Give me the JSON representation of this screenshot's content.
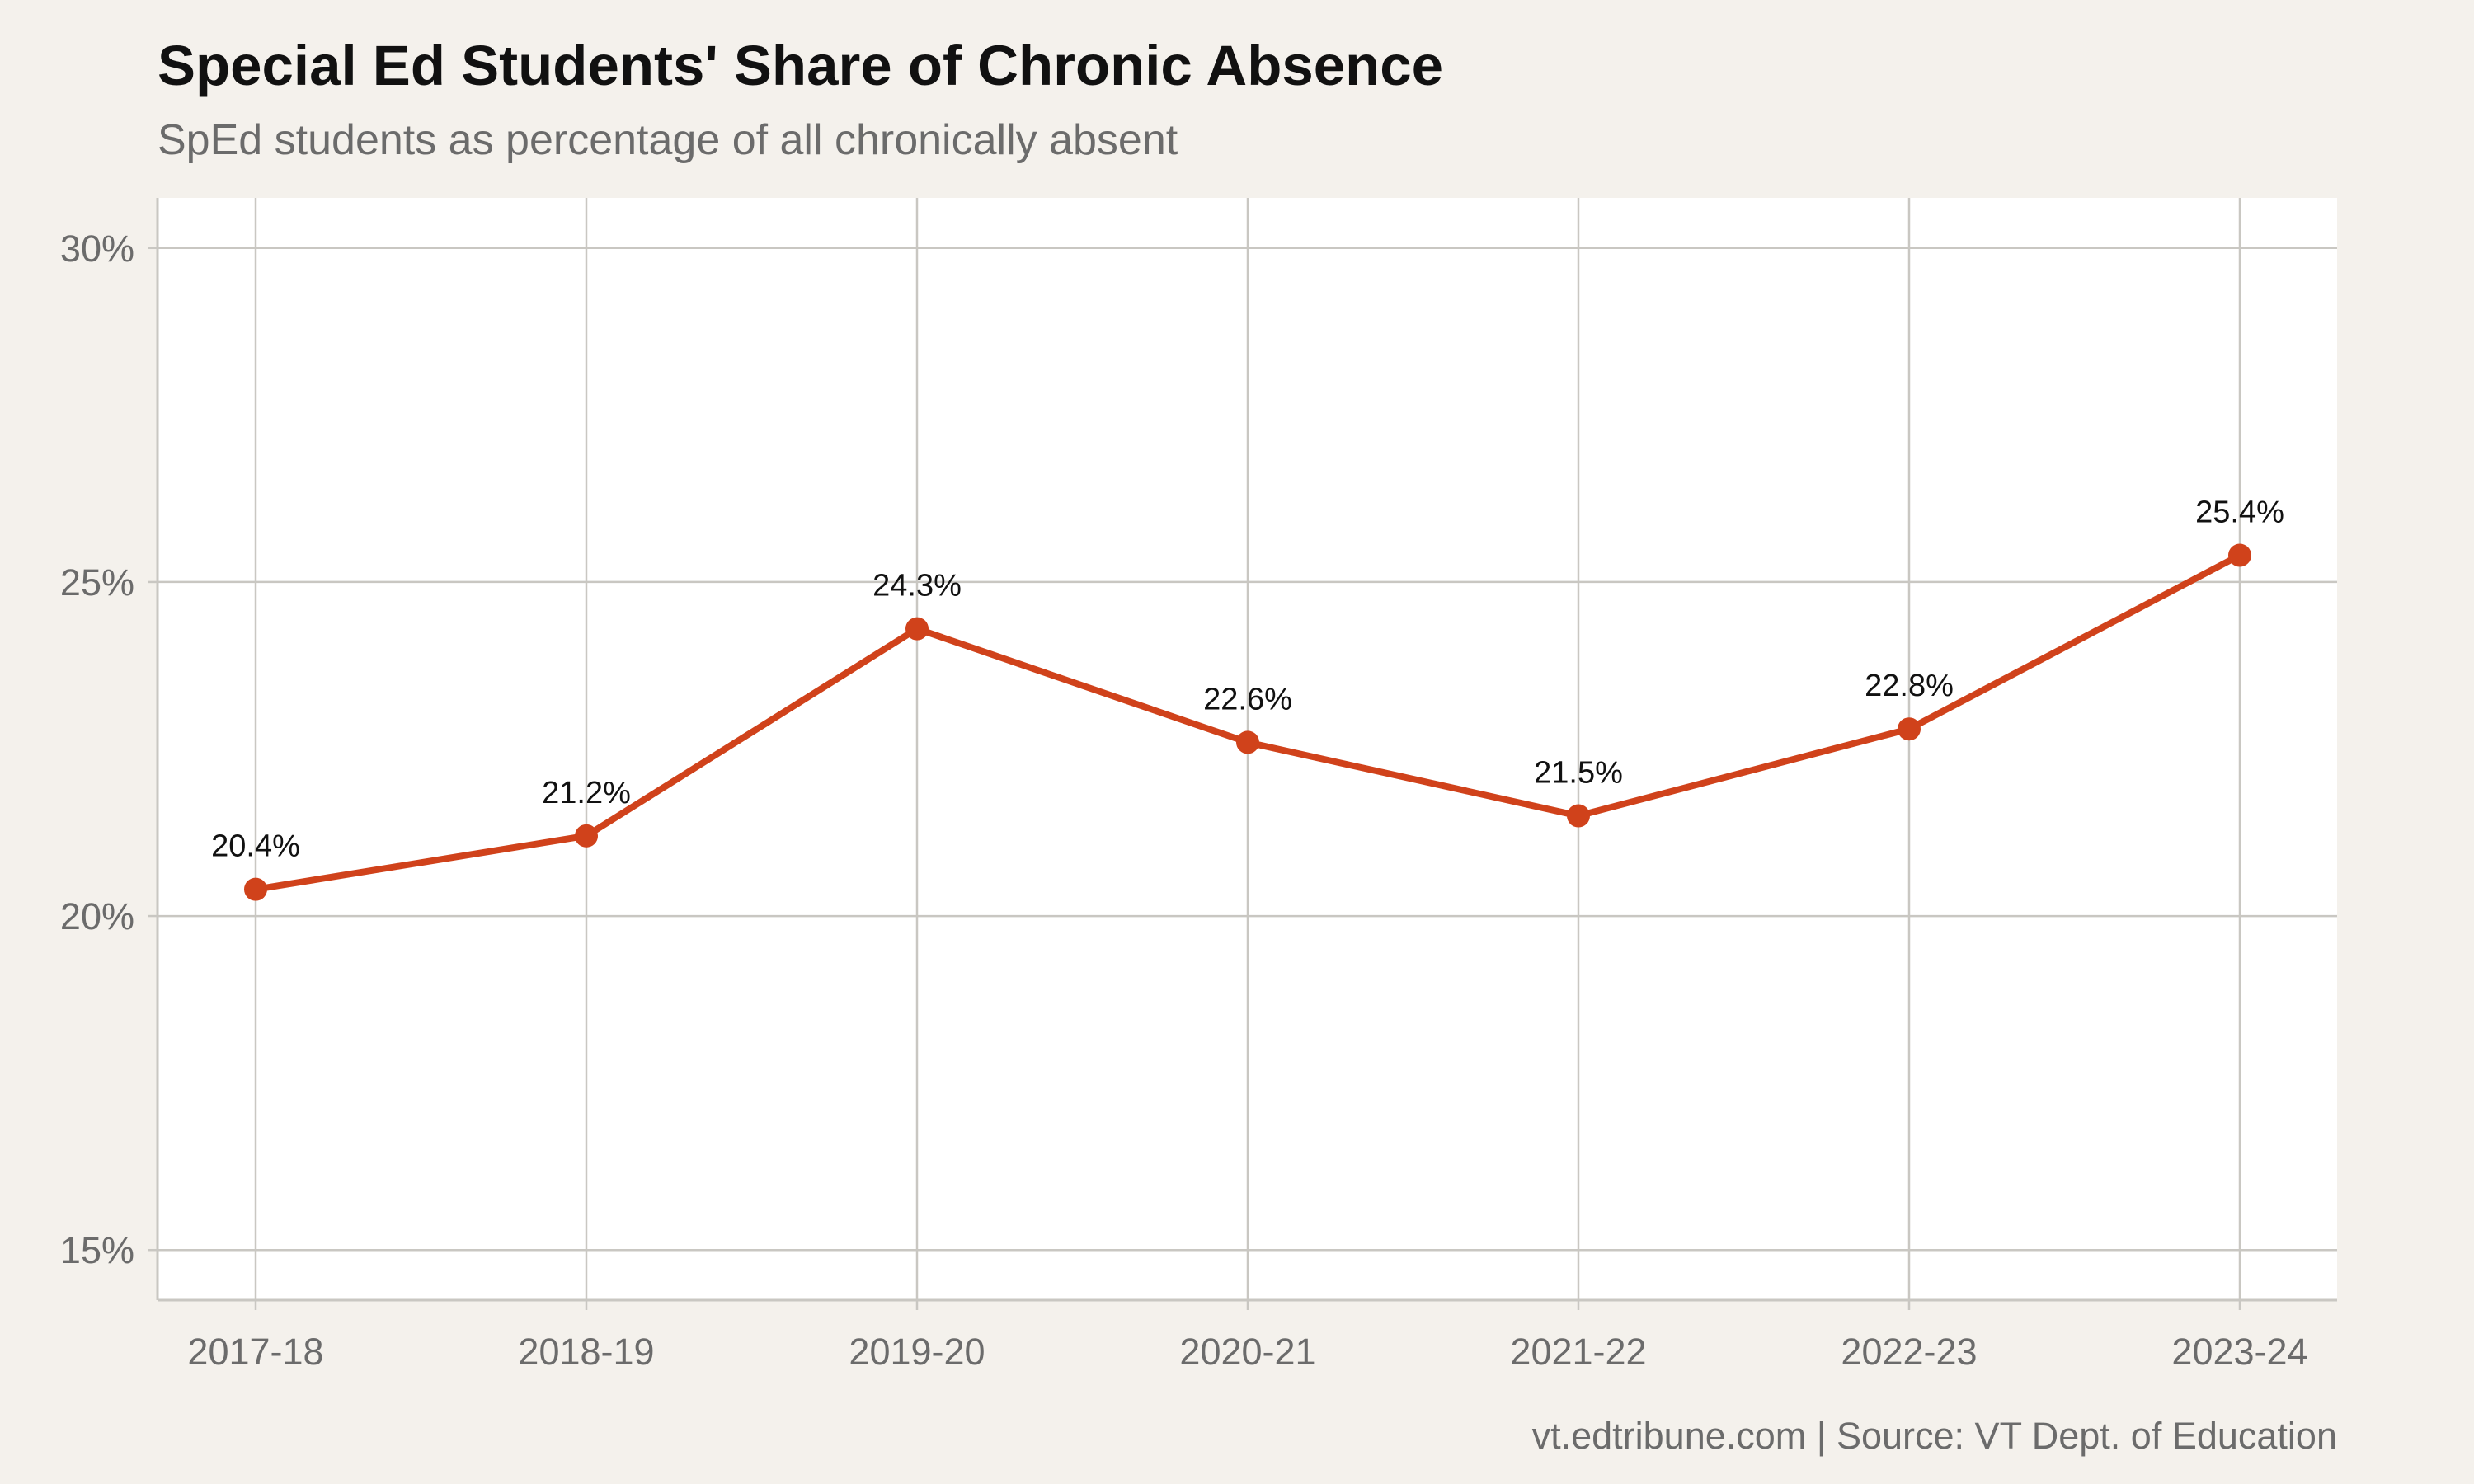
{
  "title": "Special Ed Students' Share of Chronic Absence",
  "subtitle": "SpEd students as percentage of all chronically absent",
  "caption": "vt.edtribune.com | Source: VT Dept. of Education",
  "colors": {
    "background": "#f4f1ec",
    "panel": "#ffffff",
    "grid": "#c9c7c2",
    "line": "#d0421b"
  },
  "chart_data": {
    "type": "line",
    "x": [
      "2017-18",
      "2018-19",
      "2019-20",
      "2020-21",
      "2021-22",
      "2022-23",
      "2023-24"
    ],
    "series": [
      {
        "values": [
          20.4,
          21.2,
          24.3,
          22.6,
          21.5,
          22.8,
          25.4
        ],
        "labels": [
          "20.4%",
          "21.2%",
          "24.3%",
          "22.6%",
          "21.5%",
          "22.8%",
          "25.4%"
        ]
      }
    ],
    "ylim": [
      14.25,
      30.75
    ],
    "yticks": [
      15,
      20,
      25,
      30
    ],
    "ytick_labels": [
      "15%",
      "20%",
      "25%",
      "30%"
    ],
    "grid": true,
    "legend": "none"
  }
}
